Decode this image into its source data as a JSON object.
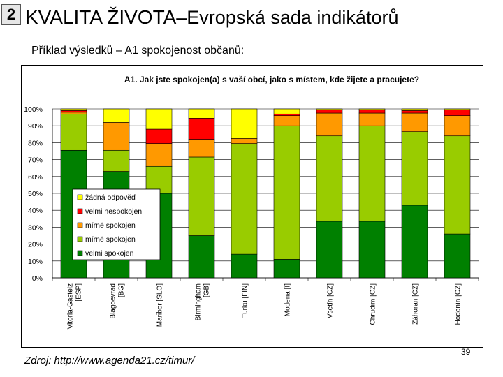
{
  "slide": {
    "number": "2",
    "title_main": "KVALITA ŽIVOTA",
    "title_rest": "–Evropská sada indikátorů",
    "subtitle": "Příklad výsledků – A1 spokojenost občanů:",
    "source": "Zdroj: http://www.agenda21.cz/timur/",
    "page_number": "39"
  },
  "colors": {
    "velmi_spokojen": "#008000",
    "mirne_spokojen_green": "#99cc00",
    "mirne_spokojen_orange": "#ff9900",
    "velmi_nespokojen": "#ff0000",
    "zadna_odpoved": "#ffff00"
  },
  "chart_data": {
    "type": "bar",
    "stacked": true,
    "title": "A1. Jak jste spokojen(a) s vaší obcí, jako s místem, kde žijete a pracujete?",
    "ylim": [
      0,
      100
    ],
    "yticks": [
      "0%",
      "10%",
      "20%",
      "30%",
      "40%",
      "50%",
      "60%",
      "70%",
      "80%",
      "90%",
      "100%"
    ],
    "legend_position": "left",
    "categories": [
      "Vitoria-Gasteiz [ESP]",
      "Blagoevrad [BG]",
      "Maribor [SLO]",
      "Birmingham [GB]",
      "Turku [FIN]",
      "Modena [I]",
      "Vsetín [CZ]",
      "Chrudim [CZ]",
      "Záhoran [CZ]",
      "Hodonín [CZ]"
    ],
    "category_lines": [
      [
        "Vitoria-Gasteiz",
        "[ESP]"
      ],
      [
        "Blagoevrad",
        "[BG]"
      ],
      [
        "Maribor [SLO]"
      ],
      [
        "Birmingham",
        "[GB]"
      ],
      [
        "Turku [FIN]"
      ],
      [
        "Modena [I]"
      ],
      [
        "Vsetín [CZ]"
      ],
      [
        "Chrudim [CZ]"
      ],
      [
        "Záhoran [CZ]"
      ],
      [
        "Hodonín [CZ]"
      ]
    ],
    "series": [
      {
        "name": "velmi spokojen",
        "color": "#008000",
        "values": [
          75.5,
          63,
          50,
          25,
          14,
          11,
          33.5,
          33.5,
          43,
          26
        ]
      },
      {
        "name": "mírně spokojen",
        "color": "#99cc00",
        "values": [
          21.5,
          12.5,
          16,
          46.5,
          65.5,
          79,
          50.5,
          56.5,
          43.5,
          58
        ]
      },
      {
        "name": "mírně spokojen",
        "color": "#ff9900",
        "values": [
          1,
          16.5,
          13.5,
          10.5,
          3,
          6,
          13.5,
          7.5,
          11,
          12
        ]
      },
      {
        "name": "velmi nespokojen",
        "color": "#ff0000",
        "values": [
          1,
          0,
          8.5,
          12.5,
          0,
          1,
          2,
          2,
          1.5,
          3.5
        ]
      },
      {
        "name": "žádná odpověď",
        "color": "#ffff00",
        "values": [
          1,
          8,
          12,
          5.5,
          17.5,
          3,
          0.5,
          0.5,
          1,
          0.5
        ]
      }
    ],
    "legend_order": [
      4,
      3,
      2,
      1,
      0
    ]
  }
}
